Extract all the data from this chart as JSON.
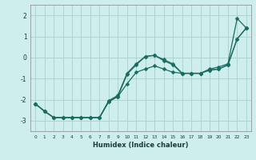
{
  "xlabel": "Humidex (Indice chaleur)",
  "background_color": "#ceeeed",
  "grid_color": "#aed4d2",
  "line_color": "#1a6b60",
  "x_ticks": [
    0,
    1,
    2,
    3,
    4,
    5,
    6,
    7,
    8,
    9,
    10,
    11,
    12,
    13,
    14,
    15,
    16,
    17,
    18,
    19,
    20,
    21,
    22,
    23
  ],
  "ylim": [
    -3.5,
    2.5
  ],
  "xlim": [
    -0.5,
    23.5
  ],
  "series1_x": [
    0,
    1,
    2,
    3,
    4,
    5,
    6,
    7,
    8,
    9,
    10,
    11,
    12,
    13,
    14,
    15,
    16,
    17,
    18,
    19,
    20,
    21,
    22,
    23
  ],
  "series1_y": [
    -2.2,
    -2.55,
    -2.85,
    -2.85,
    -2.85,
    -2.85,
    -2.85,
    -2.85,
    -2.1,
    -1.85,
    -1.25,
    -0.7,
    -0.55,
    -0.4,
    -0.55,
    -0.7,
    -0.75,
    -0.75,
    -0.75,
    -0.6,
    -0.55,
    -0.35,
    0.88,
    1.4
  ],
  "series2_x": [
    0,
    1,
    2,
    3,
    4,
    5,
    6,
    7,
    8,
    9,
    10,
    11,
    12,
    13,
    14,
    15,
    16,
    17,
    18,
    19,
    20,
    21,
    22,
    23
  ],
  "series2_y": [
    -2.2,
    -2.55,
    -2.85,
    -2.85,
    -2.85,
    -2.85,
    -2.85,
    -2.85,
    -2.1,
    -1.85,
    -0.8,
    -0.35,
    0.05,
    0.1,
    -0.15,
    -0.35,
    -0.75,
    -0.75,
    -0.75,
    -0.6,
    -0.55,
    -0.35,
    0.88,
    1.4
  ],
  "series3_x": [
    0,
    1,
    2,
    3,
    4,
    5,
    6,
    7,
    8,
    9,
    10,
    11,
    12,
    13,
    14,
    15,
    16,
    17,
    18,
    19,
    20,
    21,
    22,
    23
  ],
  "series3_y": [
    -2.2,
    -2.55,
    -2.85,
    -2.85,
    -2.85,
    -2.85,
    -2.85,
    -2.85,
    -2.05,
    -1.8,
    -0.75,
    -0.3,
    0.05,
    0.1,
    -0.1,
    -0.3,
    -0.75,
    -0.75,
    -0.75,
    -0.55,
    -0.45,
    -0.3,
    1.85,
    1.4
  ],
  "yticks": [
    -3,
    -2,
    -1,
    0,
    1,
    2
  ]
}
